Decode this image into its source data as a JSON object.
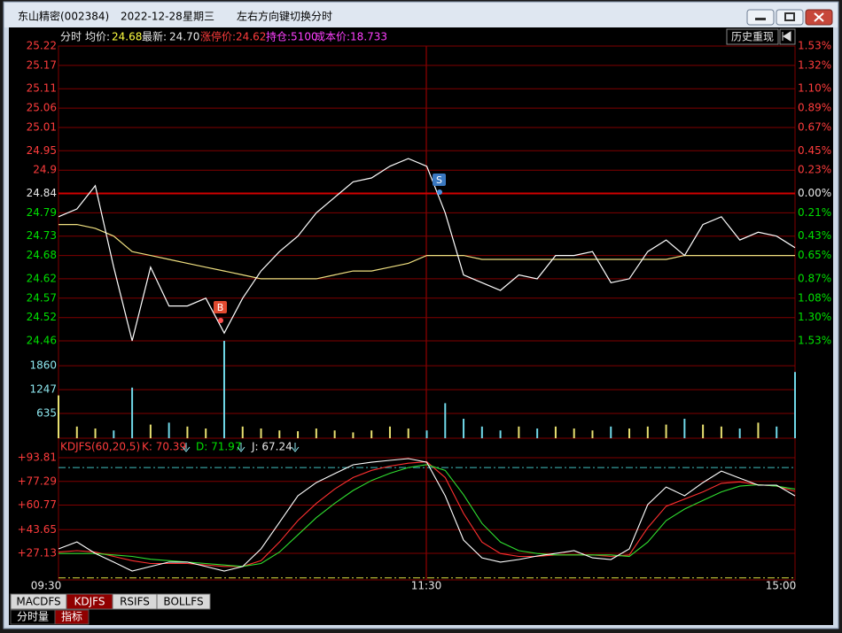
{
  "window": {
    "title": "东山精密(002384)",
    "date": "2022-12-28",
    "weekday": "星期三",
    "hint": "左右方向键切换分时"
  },
  "header": {
    "mode": "分时",
    "avg_label": "均价:",
    "avg": "24.68",
    "last_label": "最新:",
    "last": "24.70",
    "limit": "涨停价:24.62",
    "position": "持仓:5100",
    "cost": "成本价:18.733",
    "history_button": "历史重现"
  },
  "price_chart": {
    "ylim": [
      24.46,
      25.22
    ],
    "yticks": [
      25.22,
      25.17,
      25.11,
      25.06,
      25.01,
      24.95,
      24.9,
      24.84,
      24.79,
      24.73,
      24.68,
      24.62,
      24.57,
      24.52,
      24.46
    ],
    "pct_labels": [
      "1.53%",
      "1.32%",
      "1.10%",
      "0.89%",
      "0.67%",
      "0.45%",
      "0.23%",
      "0.00%",
      "0.21%",
      "0.43%",
      "0.65%",
      "0.87%",
      "1.08%",
      "1.30%",
      "1.53%"
    ],
    "price": [
      24.78,
      24.8,
      24.86,
      24.65,
      24.46,
      24.65,
      24.55,
      24.55,
      24.57,
      24.48,
      24.57,
      24.64,
      24.69,
      24.73,
      24.79,
      24.83,
      24.87,
      24.88,
      24.91,
      24.93,
      24.91,
      24.79,
      24.63,
      24.61,
      24.59,
      24.63,
      24.62,
      24.68,
      24.68,
      24.69,
      24.61,
      24.62,
      24.69,
      24.72,
      24.68,
      24.76,
      24.78,
      24.72,
      24.74,
      24.73,
      24.7
    ],
    "avg_price": [
      24.76,
      24.76,
      24.75,
      24.73,
      24.69,
      24.68,
      24.67,
      24.66,
      24.65,
      24.64,
      24.63,
      24.62,
      24.62,
      24.62,
      24.62,
      24.63,
      24.64,
      24.64,
      24.65,
      24.66,
      24.68,
      24.68,
      24.68,
      24.67,
      24.67,
      24.67,
      24.67,
      24.67,
      24.67,
      24.67,
      24.67,
      24.67,
      24.67,
      24.67,
      24.68,
      24.68,
      24.68,
      24.68,
      24.68,
      24.68,
      24.68
    ],
    "markers": [
      "B",
      "S"
    ]
  },
  "volume_chart": {
    "ylim": [
      0,
      2500
    ],
    "yticks": [
      635,
      1247,
      1860
    ],
    "values": [
      1100,
      300,
      250,
      200,
      1300,
      350,
      400,
      300,
      250,
      2500,
      300,
      250,
      200,
      180,
      250,
      200,
      150,
      200,
      300,
      250,
      200,
      900,
      500,
      300,
      200,
      300,
      250,
      300,
      250,
      200,
      300,
      250,
      300,
      350,
      500,
      350,
      300,
      250,
      400,
      300,
      1700
    ]
  },
  "kdj_chart": {
    "name": "KDJFS(60,20,5)",
    "k_label": "K: 70.39",
    "d_label": "D: 71.97",
    "j_label": "J: 67.24",
    "ylim": [
      8.6,
      106.2
    ],
    "yticks": [
      {
        "value": 93.81,
        "label": "+93.81"
      },
      {
        "value": 77.29,
        "label": "+77.29"
      },
      {
        "value": 60.77,
        "label": "+60.77"
      },
      {
        "value": 43.65,
        "label": "+43.65"
      },
      {
        "value": 27.13,
        "label": "+27.13"
      }
    ],
    "reference_lines": [
      {
        "value": 87,
        "color": "#40c0c0"
      },
      {
        "value": 10,
        "color": "#e0e040"
      }
    ],
    "series": [
      {
        "color": "#ff3030",
        "values": [
          28,
          29,
          28,
          25,
          22,
          20,
          20,
          20,
          19,
          18,
          18,
          22,
          35,
          50,
          62,
          72,
          80,
          85,
          88,
          90,
          91,
          80,
          55,
          35,
          27,
          25,
          25,
          26,
          26,
          26,
          25,
          26,
          45,
          60,
          65,
          70,
          76,
          77,
          75,
          74,
          70.39
        ]
      },
      {
        "color": "#30e030",
        "values": [
          27,
          27,
          27,
          26,
          25,
          23,
          22,
          21,
          20,
          19,
          18,
          20,
          28,
          40,
          52,
          62,
          71,
          78,
          83,
          87,
          89,
          85,
          68,
          48,
          35,
          29,
          27,
          26,
          26,
          26,
          26,
          25,
          35,
          50,
          58,
          64,
          70,
          74,
          75,
          74,
          71.97
        ]
      },
      {
        "color": "#ffffff",
        "values": [
          30.2,
          35.1,
          27.1,
          21.0,
          14.8,
          17.9,
          21.0,
          21.0,
          17.9,
          14.8,
          17.9,
          30.2,
          48.7,
          67.3,
          76.5,
          82.7,
          88.9,
          90.7,
          92.0,
          93.2,
          90.7,
          67.3,
          36.4,
          24.0,
          21.0,
          22.8,
          25.3,
          27.1,
          29.0,
          24.0,
          22.8,
          30.2,
          61.1,
          73.4,
          67.3,
          76.5,
          84.5,
          79.6,
          74.7,
          74.7,
          67.24
        ]
      }
    ]
  },
  "time_axis": [
    "09:30",
    "11:30",
    "15:00"
  ],
  "tabs": [
    "MACDFS",
    "KDJFS",
    "RSIFS",
    "BOLLFS"
  ],
  "subtabs": [
    "分时量",
    "指标"
  ]
}
